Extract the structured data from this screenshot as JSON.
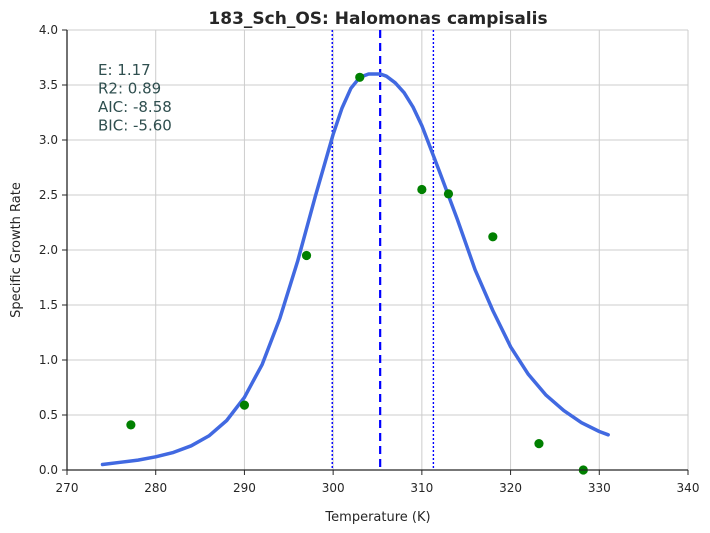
{
  "chart_data": {
    "type": "scatter",
    "title": "183_Sch_OS: Halomonas campisalis",
    "xlabel": "Temperature (K)",
    "ylabel": "Specific Growth Rate",
    "xlim": [
      270,
      340
    ],
    "ylim": [
      0.0,
      4.0
    ],
    "xticks": [
      270,
      280,
      290,
      300,
      310,
      320,
      330,
      340
    ],
    "xtick_labels": [
      "270",
      "280",
      "290",
      "300",
      "310",
      "320",
      "330",
      "340"
    ],
    "yticks": [
      0.0,
      0.5,
      1.0,
      1.5,
      2.0,
      2.5,
      3.0,
      3.5,
      4.0
    ],
    "ytick_labels": [
      "0.0",
      "0.5",
      "1.0",
      "1.5",
      "2.0",
      "2.5",
      "3.0",
      "3.5",
      "4.0"
    ],
    "grid": true,
    "stats": [
      {
        "label": "E:",
        "value": "1.17"
      },
      {
        "label": "R2:",
        "value": "0.89"
      },
      {
        "label": "AIC:",
        "value": "-8.58"
      },
      {
        "label": "BIC:",
        "value": "-5.60"
      }
    ],
    "points": {
      "color": "#008000",
      "x": [
        277.2,
        290.0,
        297.0,
        303.0,
        310.0,
        313.0,
        318.0,
        323.2,
        328.2
      ],
      "y": [
        0.41,
        0.59,
        1.95,
        3.57,
        2.55,
        2.51,
        2.12,
        0.24,
        0.0
      ]
    },
    "fit_curve": {
      "color": "#4169e1",
      "x": [
        274.0,
        276,
        278,
        280,
        282,
        284,
        286,
        288,
        290,
        292,
        294,
        296,
        298,
        300,
        301,
        302,
        303,
        304,
        305,
        305.3,
        306,
        307,
        308,
        309,
        310,
        312,
        314,
        316,
        318,
        320,
        322,
        324,
        326,
        328,
        330,
        331.0
      ],
      "y": [
        0.05,
        0.07,
        0.09,
        0.12,
        0.16,
        0.22,
        0.31,
        0.45,
        0.66,
        0.96,
        1.38,
        1.9,
        2.49,
        3.05,
        3.29,
        3.47,
        3.57,
        3.6,
        3.6,
        3.6,
        3.58,
        3.52,
        3.43,
        3.3,
        3.13,
        2.71,
        2.28,
        1.82,
        1.45,
        1.12,
        0.87,
        0.68,
        0.54,
        0.43,
        0.35,
        0.32
      ]
    },
    "vertical_lines": [
      {
        "x": 305.3,
        "style": "dashed",
        "color": "#0000ff"
      },
      {
        "x": 299.9,
        "style": "dotted",
        "color": "#0000ff"
      },
      {
        "x": 311.3,
        "style": "dotted",
        "color": "#0000ff"
      }
    ]
  }
}
